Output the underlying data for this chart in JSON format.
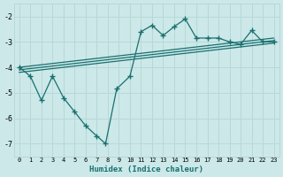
{
  "bg_color": "#cce8e8",
  "grid_color": "#b8d8d8",
  "line_color": "#1a7070",
  "xlabel": "Humidex (Indice chaleur)",
  "xlim": [
    -0.5,
    23.5
  ],
  "ylim": [
    -7.5,
    -1.5
  ],
  "yticks": [
    -7,
    -6,
    -5,
    -4,
    -3,
    -2
  ],
  "xticks": [
    0,
    1,
    2,
    3,
    4,
    5,
    6,
    7,
    8,
    9,
    10,
    11,
    12,
    13,
    14,
    15,
    16,
    17,
    18,
    19,
    20,
    21,
    22,
    23
  ],
  "trend1_x": [
    0,
    23
  ],
  "trend1_y": [
    -4.0,
    -2.85
  ],
  "trend2_x": [
    0,
    23
  ],
  "trend2_y": [
    -4.1,
    -2.95
  ],
  "trend3_x": [
    0,
    23
  ],
  "trend3_y": [
    -4.2,
    -3.05
  ],
  "zigzag_x": [
    0,
    1,
    2,
    3,
    4,
    5,
    6,
    7,
    7.8,
    8.8,
    10,
    11,
    12,
    13,
    14,
    15,
    16,
    17,
    18,
    19,
    20,
    21,
    22,
    23
  ],
  "zigzag_y": [
    -4.0,
    -4.35,
    -5.3,
    -4.35,
    -5.2,
    -5.75,
    -6.3,
    -6.7,
    -7.0,
    -4.85,
    -4.35,
    -2.6,
    -2.35,
    -2.75,
    -2.4,
    -2.1,
    -2.85,
    -2.85,
    -2.85,
    -3.0,
    -3.1,
    -2.55,
    -3.0,
    -3.0
  ]
}
